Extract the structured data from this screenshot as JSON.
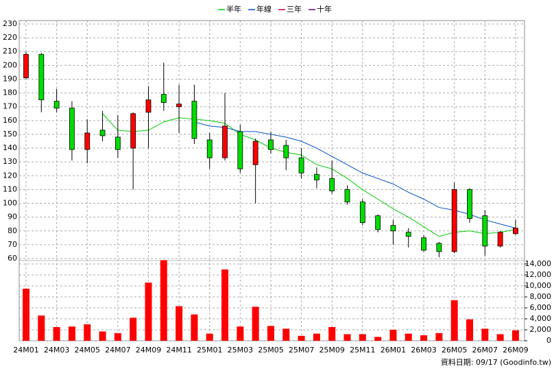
{
  "chart_data": {
    "type": "candlestick",
    "categories": [
      "24M01",
      null,
      "24M03",
      null,
      "24M05",
      null,
      "24M07",
      null,
      "24M09",
      null,
      "24M11",
      null,
      "25M01",
      null,
      "25M03",
      null,
      "25M05",
      null,
      "25M07",
      null,
      "25M09",
      null,
      "25M11",
      null,
      "26M01",
      null,
      "26M03",
      null,
      "26M05",
      null,
      "26M07",
      null,
      "26M09"
    ],
    "open": [
      191,
      208,
      174,
      169,
      139,
      153,
      148,
      140,
      166,
      179,
      170,
      174,
      146,
      133,
      152,
      128,
      146,
      142,
      133,
      121,
      118,
      110,
      101,
      91,
      84,
      79,
      75,
      71,
      65,
      110,
      91,
      69,
      78
    ],
    "high": [
      210,
      209,
      183,
      174,
      161,
      167,
      164,
      166,
      185,
      202,
      186,
      186,
      151,
      180,
      157,
      147,
      152,
      146,
      140,
      126,
      131,
      113,
      103,
      92,
      88,
      82,
      77,
      72,
      115,
      111,
      95,
      80,
      88
    ],
    "low": [
      190,
      166,
      166,
      131,
      129,
      145,
      133,
      110,
      140,
      167,
      151,
      143,
      125,
      131,
      122,
      100,
      136,
      124,
      118,
      111,
      107,
      99,
      84,
      79,
      70,
      68,
      65,
      61,
      64,
      86,
      62,
      68,
      77
    ],
    "close": [
      208,
      175,
      169,
      139,
      151,
      149,
      139,
      165,
      175,
      173,
      172,
      147,
      133,
      156,
      125,
      145,
      139,
      133,
      122,
      117,
      109,
      101,
      86,
      81,
      80,
      76,
      66,
      65,
      110,
      89,
      69,
      79,
      82
    ],
    "up_color": "#ff0000",
    "down_color": "#00dd00",
    "ylim": [
      60,
      230
    ],
    "yticks": [
      60,
      70,
      80,
      90,
      100,
      110,
      120,
      130,
      140,
      150,
      160,
      170,
      180,
      190,
      200,
      210,
      220,
      230
    ],
    "grid": true,
    "series": [
      {
        "name": "半年",
        "color": "#00cc00",
        "values": [
          null,
          null,
          null,
          null,
          null,
          165,
          153,
          152,
          153,
          159,
          162,
          161,
          160,
          158,
          150,
          146,
          140,
          137,
          135,
          128,
          125,
          118,
          110,
          103,
          96,
          90,
          83,
          76,
          79,
          80,
          78,
          79,
          81
        ]
      },
      {
        "name": "年線",
        "color": "#0050c8",
        "values": [
          null,
          null,
          null,
          null,
          null,
          null,
          null,
          null,
          null,
          null,
          null,
          159,
          156,
          155,
          152,
          152,
          150,
          148,
          145,
          140,
          134,
          128,
          122,
          118,
          114,
          108,
          103,
          97,
          95,
          92,
          88,
          85,
          82
        ]
      },
      {
        "name": "三年",
        "color": "#cc0033",
        "values": [
          null,
          null,
          null,
          null,
          null,
          null,
          null,
          null,
          null,
          null,
          null,
          null,
          null,
          null,
          null,
          null,
          null,
          null,
          null,
          null,
          null,
          null,
          null,
          null,
          null,
          null,
          null,
          null,
          null,
          null,
          null,
          null,
          null
        ]
      },
      {
        "name": "十年",
        "color": "#660099",
        "values": [
          null,
          null,
          null,
          null,
          null,
          null,
          null,
          null,
          null,
          null,
          null,
          null,
          null,
          null,
          null,
          null,
          null,
          null,
          null,
          null,
          null,
          null,
          null,
          null,
          null,
          null,
          null,
          null,
          null,
          null,
          null,
          null,
          null
        ]
      }
    ],
    "volume": {
      "color": "#ff0000",
      "values": [
        9500,
        4600,
        2500,
        2600,
        3000,
        1700,
        1400,
        4200,
        10600,
        14700,
        6300,
        4800,
        1300,
        13000,
        2600,
        6200,
        2700,
        2200,
        900,
        1300,
        2500,
        1200,
        1200,
        700,
        2000,
        1300,
        1000,
        1400,
        7400,
        3900,
        2200,
        1200,
        1900
      ],
      "ylim": [
        0,
        14750
      ],
      "yticks": [
        0,
        {
          "value": 2000,
          "label": "2,000"
        },
        {
          "value": 4000,
          "label": "4,000"
        },
        {
          "value": 6000,
          "label": "6,000"
        },
        {
          "value": 8000,
          "label": "8,000"
        },
        {
          "value": 10000,
          "label": "10,000"
        },
        {
          "value": 12000,
          "label": "12,000"
        },
        {
          "value": 14000,
          "label": "14,000"
        }
      ]
    },
    "footnote": "資料日期: 09/17 (Goodinfo.tw)"
  }
}
